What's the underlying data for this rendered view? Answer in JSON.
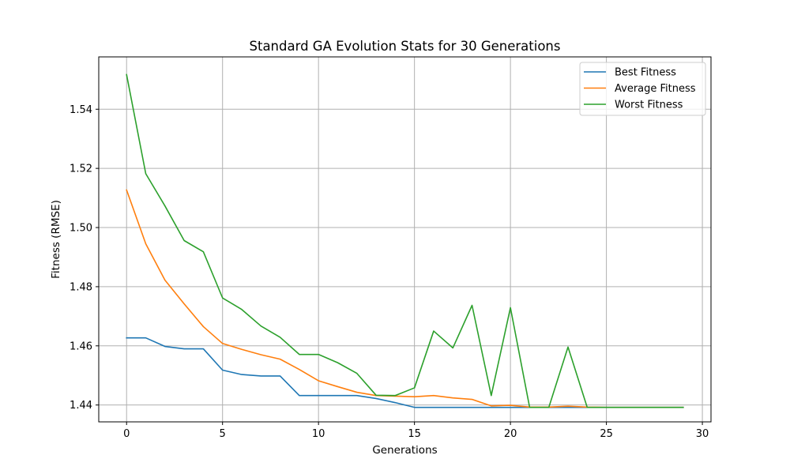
{
  "chart_data": {
    "type": "line",
    "title": "Standard GA Evolution Stats for 30 Generations",
    "xlabel": "Generations",
    "ylabel": "Fitness (RMSE)",
    "xlim": [
      -1.45,
      30.45
    ],
    "ylim": [
      1.4343,
      1.5577
    ],
    "xticks": [
      0,
      5,
      10,
      15,
      20,
      25,
      30
    ],
    "xtick_labels": [
      "0",
      "5",
      "10",
      "15",
      "20",
      "25",
      "30"
    ],
    "yticks": [
      1.44,
      1.46,
      1.48,
      1.5,
      1.52,
      1.54
    ],
    "ytick_labels": [
      "1.44",
      "1.46",
      "1.48",
      "1.50",
      "1.52",
      "1.54"
    ],
    "grid": true,
    "legend_position": "top-right",
    "x": [
      0,
      1,
      2,
      3,
      4,
      5,
      6,
      7,
      8,
      9,
      10,
      11,
      12,
      13,
      14,
      15,
      16,
      17,
      18,
      19,
      20,
      21,
      22,
      23,
      24,
      25,
      26,
      27,
      28,
      29
    ],
    "series": [
      {
        "name": "Best Fitness",
        "color": "#1f77b4",
        "values": [
          1.4627,
          1.4627,
          1.4598,
          1.459,
          1.459,
          1.4518,
          1.4503,
          1.4498,
          1.4498,
          1.4432,
          1.4432,
          1.4432,
          1.4432,
          1.4422,
          1.4408,
          1.4392,
          1.4392,
          1.4392,
          1.4392,
          1.4392,
          1.4392,
          1.4392,
          1.4392,
          1.4392,
          1.4392,
          1.4392,
          1.4392,
          1.4392,
          1.4392,
          1.4392
        ]
      },
      {
        "name": "Average Fitness",
        "color": "#ff7f0e",
        "values": [
          1.5127,
          1.4945,
          1.4822,
          1.4742,
          1.4665,
          1.4608,
          1.4588,
          1.457,
          1.4555,
          1.452,
          1.4482,
          1.4462,
          1.4443,
          1.4432,
          1.443,
          1.4428,
          1.4432,
          1.4424,
          1.4419,
          1.4397,
          1.4399,
          1.4393,
          1.4393,
          1.4396,
          1.4393,
          1.4392,
          1.4392,
          1.4392,
          1.4392,
          1.4392
        ]
      },
      {
        "name": "Worst Fitness",
        "color": "#2ca02c",
        "values": [
          1.5517,
          1.5182,
          1.5073,
          1.4956,
          1.4918,
          1.4762,
          1.4723,
          1.4667,
          1.4629,
          1.4571,
          1.4571,
          1.4543,
          1.4507,
          1.4433,
          1.4432,
          1.4458,
          1.465,
          1.4593,
          1.4737,
          1.4432,
          1.4729,
          1.4392,
          1.4392,
          1.4596,
          1.4392,
          1.4392,
          1.4392,
          1.4392,
          1.4392,
          1.4392
        ]
      }
    ]
  }
}
